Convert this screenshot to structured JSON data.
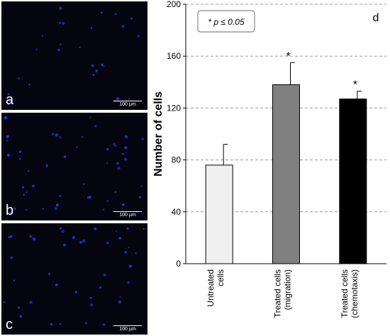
{
  "panels": [
    {
      "letter": "a",
      "scale_label": "100 µm"
    },
    {
      "letter": "b",
      "scale_label": "100 µm"
    },
    {
      "letter": "c",
      "scale_label": "100 µm"
    }
  ],
  "colors": {
    "micro_background": "#05050f",
    "nuclei": "#2236e6",
    "bar_untreated": "#f0f0f0",
    "bar_migration": "#808080",
    "bar_chemotaxis": "#000000",
    "grid": "#9a9a9a"
  },
  "chart_data": {
    "type": "bar",
    "panel_letter": "d",
    "legend_note": "* p ≤ 0.05",
    "ylabel": "Number of cells",
    "ylim": [
      0,
      200
    ],
    "yticks": [
      0,
      40,
      80,
      120,
      160,
      200
    ],
    "grid": true,
    "categories": [
      [
        "Untreated",
        "cells"
      ],
      [
        "Treated cells",
        "(migration)"
      ],
      [
        "Treated cells",
        "(chemotaxis)"
      ]
    ],
    "values": [
      76,
      138,
      127
    ],
    "errors": [
      16,
      17,
      6
    ],
    "significance": [
      "",
      "*",
      "*"
    ]
  }
}
